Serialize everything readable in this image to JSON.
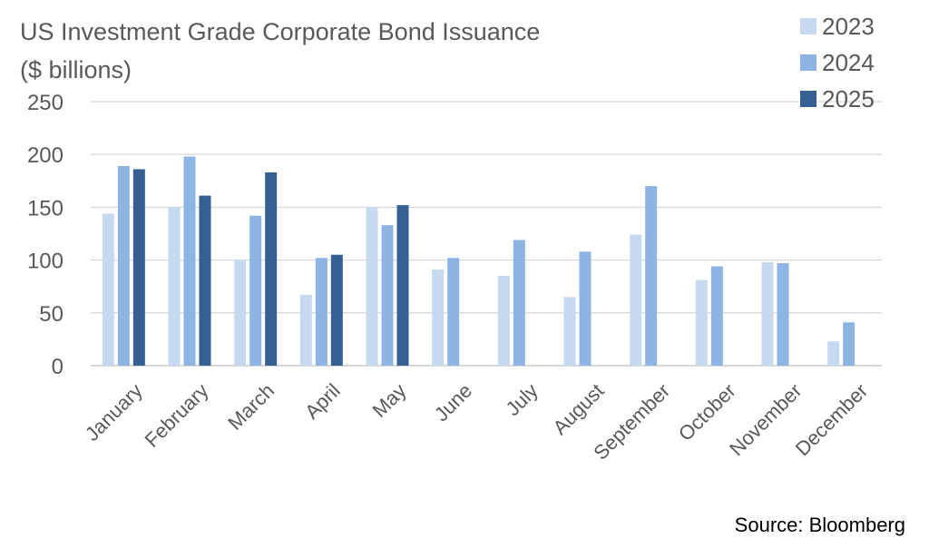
{
  "chart_data": {
    "type": "bar",
    "title_line1": "US Investment Grade Corporate Bond Issuance",
    "title_line2": "($ billions)",
    "categories": [
      "January",
      "February",
      "March",
      "April",
      "May",
      "June",
      "July",
      "August",
      "September",
      "October",
      "November",
      "December"
    ],
    "series": [
      {
        "name": "2023",
        "color": "#c6d9f1",
        "values": [
          144,
          150,
          100,
          67,
          150,
          91,
          85,
          65,
          124,
          81,
          98,
          23
        ]
      },
      {
        "name": "2024",
        "color": "#8eb4e3",
        "values": [
          189,
          198,
          142,
          102,
          133,
          102,
          119,
          108,
          170,
          94,
          97,
          41
        ]
      },
      {
        "name": "2025",
        "color": "#376092",
        "values": [
          186,
          161,
          183,
          105,
          152,
          null,
          null,
          null,
          null,
          null,
          null,
          null
        ]
      }
    ],
    "ylim": [
      0,
      250
    ],
    "yticks": [
      0,
      50,
      100,
      150,
      200,
      250
    ],
    "grid": true,
    "legend_position": "top-right"
  },
  "source": "Source: Bloomberg"
}
